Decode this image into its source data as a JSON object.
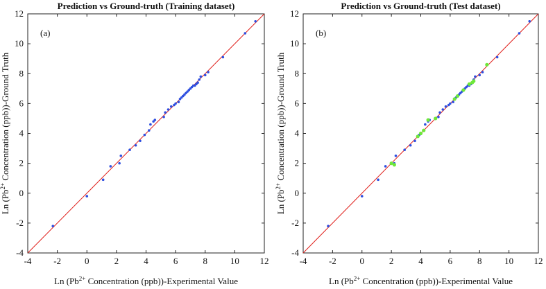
{
  "chart_data": [
    {
      "type": "scatter",
      "title": "Prediction vs Ground-truth (Training dataset)",
      "panel_label": "(a)",
      "xlabel": [
        "Ln (Pb",
        "2+",
        " Concentration (ppb))-Experimental Value"
      ],
      "ylabel": [
        "Ln (Pb",
        "2+",
        " Concentration (ppb))-Ground Truth"
      ],
      "xlim": [
        -4,
        12
      ],
      "ylim": [
        -4,
        12
      ],
      "xticks": [
        -4,
        -2,
        0,
        2,
        4,
        6,
        8,
        10,
        12
      ],
      "yticks": [
        -4,
        -2,
        0,
        2,
        4,
        6,
        8,
        10,
        12
      ],
      "line_color": "#e0201c",
      "series": [
        {
          "color": "#2e4fe0",
          "x": [
            -2.3,
            0,
            1.1,
            1.6,
            2.2,
            2.3,
            2.9,
            3.3,
            3.6,
            3.9,
            4.2,
            4.3,
            4.5,
            4.6,
            5.2,
            5.3,
            5.5,
            5.7,
            5.9,
            6.0,
            6.2,
            6.3,
            6.4,
            6.5,
            6.6,
            6.7,
            6.8,
            6.9,
            7.0,
            7.1,
            7.2,
            7.3,
            7.4,
            7.5,
            7.6,
            7.7,
            8.0,
            8.2,
            9.2,
            10.7,
            11.4
          ],
          "y": [
            -2.2,
            -0.2,
            0.9,
            1.8,
            2.0,
            2.5,
            2.9,
            3.2,
            3.5,
            3.9,
            4.2,
            4.6,
            4.8,
            4.9,
            5.1,
            5.4,
            5.6,
            5.8,
            5.9,
            6.0,
            6.1,
            6.3,
            6.4,
            6.5,
            6.6,
            6.7,
            6.8,
            6.9,
            7.0,
            7.1,
            7.2,
            7.2,
            7.3,
            7.4,
            7.6,
            7.8,
            7.9,
            8.1,
            9.1,
            10.7,
            11.5
          ]
        }
      ]
    },
    {
      "type": "scatter",
      "title": "Prediction vs Ground-truth (Test dataset)",
      "panel_label": "(b)",
      "xlabel": [
        "Ln (Pb",
        "2+",
        " Concentration (ppb))-Experimental Value"
      ],
      "ylabel": [
        "Ln (Pb",
        "2+",
        " Concentration (ppb))-Ground Truth"
      ],
      "xlim": [
        -4,
        12
      ],
      "ylim": [
        -4,
        12
      ],
      "xticks": [
        -4,
        -2,
        0,
        2,
        4,
        6,
        8,
        10,
        12
      ],
      "yticks": [
        -4,
        -2,
        0,
        2,
        4,
        6,
        8,
        10,
        12
      ],
      "line_color": "#e0201c",
      "series": [
        {
          "color": "#2e4fe0",
          "x": [
            -2.3,
            0,
            1.1,
            1.6,
            2.2,
            2.3,
            2.9,
            3.3,
            3.6,
            3.9,
            4.2,
            4.3,
            4.5,
            4.6,
            5.2,
            5.3,
            5.5,
            5.7,
            5.9,
            6.0,
            6.2,
            6.3,
            6.4,
            6.5,
            6.6,
            6.7,
            6.8,
            6.9,
            7.0,
            7.1,
            7.2,
            7.3,
            7.4,
            7.5,
            7.6,
            7.7,
            8.0,
            8.2,
            9.2,
            10.7,
            11.4
          ],
          "y": [
            -2.2,
            -0.2,
            0.9,
            1.8,
            2.0,
            2.5,
            2.9,
            3.2,
            3.5,
            3.9,
            4.2,
            4.6,
            4.8,
            4.9,
            5.1,
            5.4,
            5.6,
            5.8,
            5.9,
            6.0,
            6.1,
            6.3,
            6.4,
            6.5,
            6.6,
            6.7,
            6.8,
            6.9,
            7.0,
            7.1,
            7.2,
            7.2,
            7.3,
            7.4,
            7.6,
            7.8,
            7.9,
            8.1,
            9.1,
            10.7,
            11.5
          ]
        },
        {
          "color": "#6ee83a",
          "x": [
            2.0,
            2.2,
            3.8,
            4.0,
            4.2,
            4.5,
            5.0,
            6.3,
            6.5,
            6.9,
            7.3,
            7.5,
            7.6,
            8.5
          ],
          "y": [
            2.0,
            1.9,
            3.8,
            4.0,
            4.2,
            4.9,
            5.0,
            6.3,
            6.5,
            6.9,
            7.3,
            7.4,
            7.5,
            8.6
          ]
        }
      ]
    }
  ]
}
